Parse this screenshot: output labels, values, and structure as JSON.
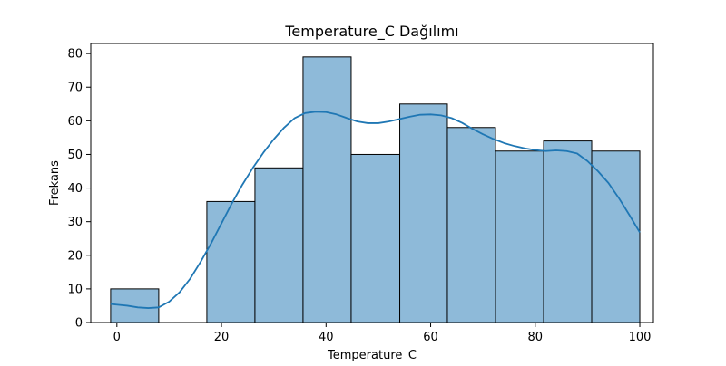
{
  "chart_data": {
    "type": "bar",
    "title": "Temperature_C Dağılımı",
    "xlabel": "Temperature_C",
    "ylabel": "Frekans",
    "xlim": [
      -5.0,
      102.6
    ],
    "ylim": [
      0,
      83
    ],
    "grid": false,
    "bins": [
      {
        "start": -1.2,
        "end": 8.0,
        "count": 10
      },
      {
        "start": 8.0,
        "end": 17.2,
        "count": 0
      },
      {
        "start": 17.2,
        "end": 26.4,
        "count": 36
      },
      {
        "start": 26.4,
        "end": 35.6,
        "count": 46
      },
      {
        "start": 35.6,
        "end": 44.8,
        "count": 79
      },
      {
        "start": 44.8,
        "end": 54.1,
        "count": 50
      },
      {
        "start": 54.1,
        "end": 63.2,
        "count": 65
      },
      {
        "start": 63.2,
        "end": 72.4,
        "count": 58
      },
      {
        "start": 72.4,
        "end": 81.6,
        "count": 51
      },
      {
        "start": 81.6,
        "end": 90.8,
        "count": 54
      },
      {
        "start": 90.8,
        "end": 100.0,
        "count": 51
      }
    ],
    "kde_x": [
      -1.2,
      2,
      4,
      6,
      8,
      10,
      12,
      14,
      16,
      18,
      20,
      22,
      24,
      26,
      28,
      30,
      32,
      34,
      36,
      38,
      40,
      42,
      44,
      46,
      48,
      50,
      52,
      54,
      56,
      58,
      60,
      62,
      64,
      66,
      68,
      70,
      72,
      74,
      76,
      78,
      80,
      82,
      84,
      86,
      88,
      90,
      92,
      94,
      96,
      98,
      100
    ],
    "kde_y": [
      5.5,
      5.0,
      4.5,
      4.3,
      4.5,
      6.2,
      9.0,
      13.0,
      18.0,
      23.5,
      29.5,
      35.5,
      41.0,
      46.0,
      50.5,
      54.5,
      58.0,
      60.8,
      62.3,
      62.7,
      62.6,
      61.9,
      60.8,
      59.8,
      59.3,
      59.3,
      59.8,
      60.5,
      61.2,
      61.8,
      61.9,
      61.6,
      60.8,
      59.4,
      57.6,
      56.0,
      54.6,
      53.4,
      52.5,
      51.8,
      51.3,
      51.0,
      51.2,
      51.0,
      50.3,
      48.0,
      45.0,
      41.5,
      37.0,
      32.0,
      26.8
    ],
    "x_ticks": [
      0,
      20,
      40,
      60,
      80,
      100
    ],
    "y_ticks": [
      0,
      10,
      20,
      30,
      40,
      50,
      60,
      70,
      80
    ],
    "colors": {
      "bar_fill": "#8ebad9",
      "bar_edge": "#000000",
      "kde_line": "#1f77b4",
      "axes": "#000000"
    }
  }
}
